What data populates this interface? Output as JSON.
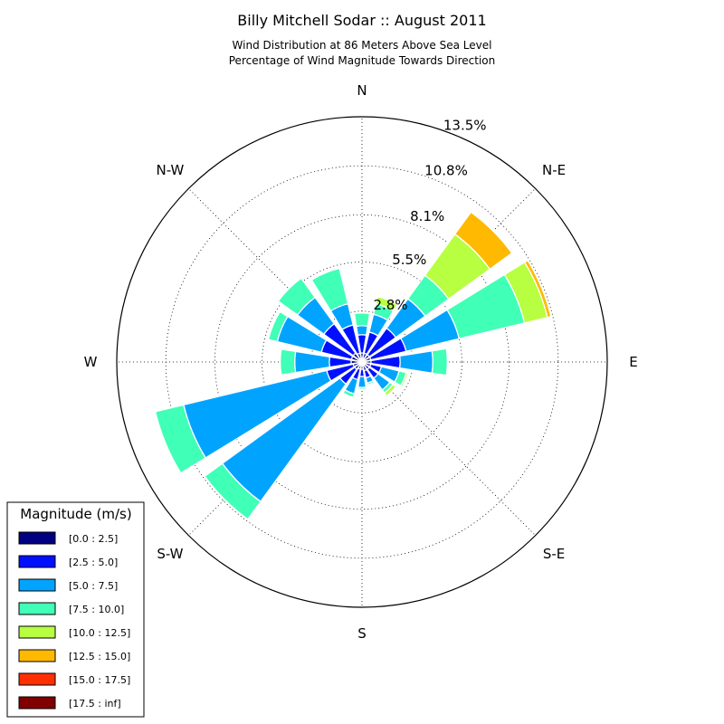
{
  "title": "Billy Mitchell Sodar :: August 2011",
  "subtitle_line1": "Wind Distribution at 86 Meters Above Sea Level",
  "subtitle_line2": "Percentage of Wind Magnitude Towards Direction",
  "chart_data": {
    "type": "windrose",
    "directions": [
      "N",
      "N-E",
      "E",
      "S-E",
      "S",
      "S-W",
      "W",
      "N-W"
    ],
    "ring_labels": [
      "2.8%",
      "5.5%",
      "8.1%",
      "10.8%",
      "13.5%"
    ],
    "ring_values": [
      2.8,
      5.5,
      8.1,
      10.8,
      13.5
    ],
    "rmax": 13.5,
    "grid": true,
    "sector_angles_deg": [
      0,
      22.5,
      45,
      67.5,
      90,
      112.5,
      135,
      157.5,
      180,
      202.5,
      225,
      247.5,
      270,
      292.5,
      315,
      337.5
    ],
    "legend": {
      "title": "Magnitude (m/s)",
      "position": "bottom-left",
      "bins": [
        {
          "label": "[0.0 : 2.5]",
          "color": "#000080"
        },
        {
          "label": "[2.5 : 5.0]",
          "color": "#0010ff"
        },
        {
          "label": "[5.0 : 7.5]",
          "color": "#00a4ff"
        },
        {
          "label": "[7.5 : 10.0]",
          "color": "#40ffb7"
        },
        {
          "label": "[10.0 : 12.5]",
          "color": "#b7ff40"
        },
        {
          "label": "[12.5 : 15.0]",
          "color": "#ffb900"
        },
        {
          "label": "[15.0 : 17.5]",
          "color": "#ff3000"
        },
        {
          "label": "[17.5 : inf]",
          "color": "#800000"
        }
      ]
    },
    "series": [
      {
        "name": "[0.0 : 2.5]",
        "values": [
          0.5,
          0.5,
          0.5,
          0.5,
          0.5,
          0.5,
          0.5,
          0.5,
          0.4,
          0.4,
          0.5,
          0.5,
          0.6,
          0.6,
          0.6,
          0.5
        ]
      },
      {
        "name": "[2.5 : 5.0]",
        "values": [
          1.0,
          1.2,
          1.8,
          2.0,
          1.6,
          0.6,
          0.6,
          0.4,
          0.4,
          0.6,
          1.0,
          1.5,
          1.2,
          1.7,
          2.0,
          1.6
        ]
      },
      {
        "name": "[5.0 : 7.5]",
        "values": [
          0.5,
          1.0,
          2.0,
          3.0,
          1.8,
          1.0,
          0.8,
          0.3,
          0.6,
          0.8,
          8.0,
          8.1,
          1.9,
          2.5,
          1.8,
          1.2
        ]
      },
      {
        "name": "[7.5 : 10.0]",
        "values": [
          0.7,
          0.6,
          1.6,
          3.7,
          0.8,
          0.4,
          0.2,
          0.1,
          0.1,
          0.2,
          1.2,
          1.6,
          0.8,
          0.5,
          1.3,
          2.0
        ]
      },
      {
        "name": "[10.0 : 12.5]",
        "values": [
          0.0,
          0.4,
          2.8,
          1.3,
          0.0,
          0.1,
          0.2,
          0.0,
          0.0,
          0.0,
          0.0,
          0.0,
          0.0,
          0.0,
          0.0,
          0.0
        ]
      },
      {
        "name": "[12.5 : 15.0]",
        "values": [
          0.0,
          0.0,
          1.5,
          0.2,
          0.0,
          0.0,
          0.0,
          0.0,
          0.0,
          0.0,
          0.0,
          0.0,
          0.0,
          0.0,
          0.0,
          0.0
        ]
      },
      {
        "name": "[15.0 : 17.5]",
        "values": [
          0,
          0,
          0,
          0,
          0,
          0,
          0,
          0,
          0,
          0,
          0,
          0,
          0,
          0,
          0,
          0
        ]
      },
      {
        "name": "[17.5 : inf]",
        "values": [
          0,
          0,
          0,
          0,
          0,
          0,
          0,
          0,
          0,
          0,
          0,
          0,
          0,
          0,
          0,
          0
        ]
      }
    ]
  }
}
